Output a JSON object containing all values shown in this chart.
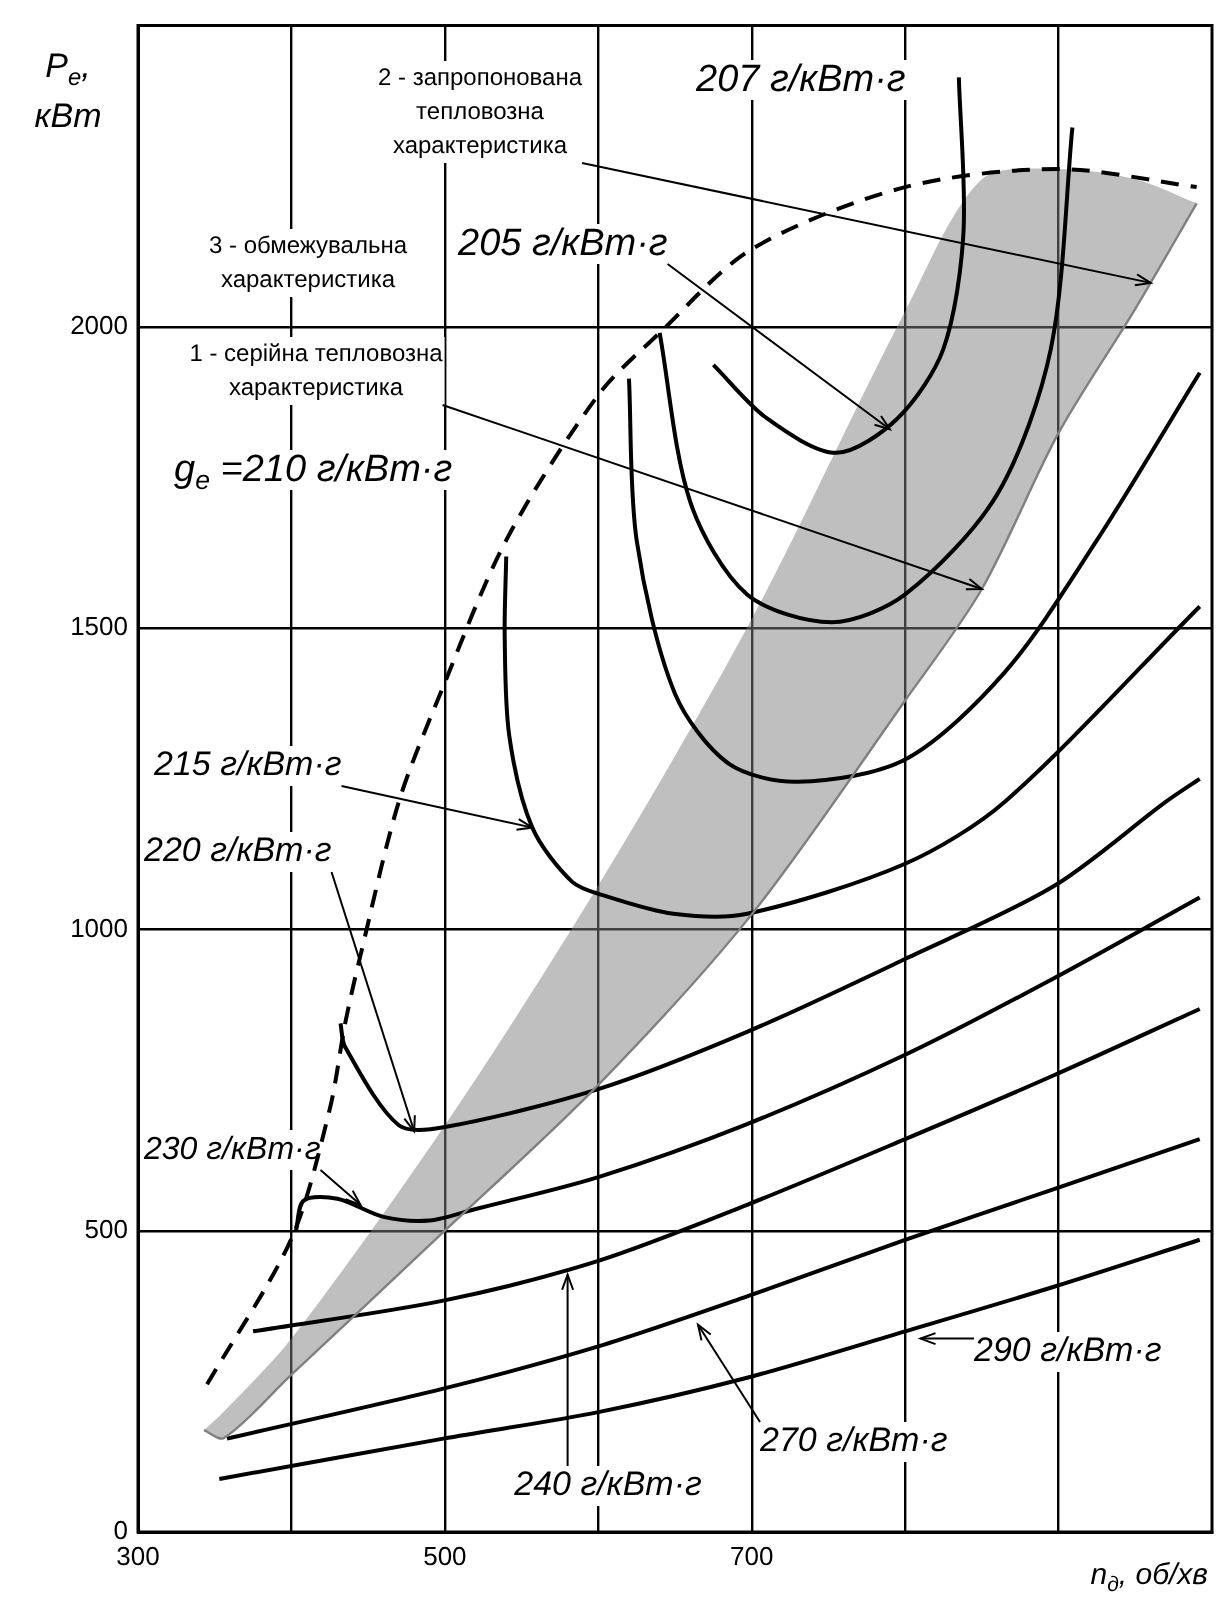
{
  "chart_data": {
    "type": "line",
    "xlabel": "n$_{д}$, об/хв",
    "ylabel": "P$_{e}$, кВт",
    "xlim": [
      300,
      1000
    ],
    "ylim": [
      0,
      2500
    ],
    "xticks": [
      300,
      {
        "value": 400,
        "label": null
      },
      500,
      {
        "value": 600,
        "label": null
      },
      700,
      {
        "value": 800,
        "label": null
      },
      {
        "value": 900,
        "label": null
      }
    ],
    "yticks": [
      0,
      500,
      1000,
      1500,
      2000
    ],
    "grid": true,
    "marker": "none",
    "annotations": [
      {
        "text": "2 - запропонована тепловозна характеристика",
        "x": 960,
        "y": 2073
      },
      "3 - обмежувальна характеристика",
      {
        "text": "1 - серійна тепловозна характеристика",
        "x": 850,
        "y": 1565
      },
      {
        "text": "205 г/кВт·г",
        "x": 790,
        "y": 1830
      },
      "207 г/кВт·г",
      "g$_{e}$ =210 г/кВт·г",
      {
        "text": "215 г/кВт·г",
        "x": 557,
        "y": 1169
      },
      {
        "text": "220 г/кВт·г",
        "x": 480,
        "y": 665
      },
      {
        "text": "230 г/кВт·г",
        "x": 445,
        "y": 543
      },
      {
        "text": "240 г/кВт·г",
        "x": 580,
        "y": 427
      },
      {
        "text": "270 г/кВт·г",
        "x": 665,
        "y": 344
      },
      {
        "text": "290 г/кВт·г",
        "x": 810,
        "y": 321
      }
    ],
    "series": [
      {
        "type": "line",
        "color": "#808080",
        "x": [
          343,
          356,
          400,
          500,
          600,
          700,
          800,
          850,
          900,
          950,
          990
        ],
        "values": [
          169,
          156,
          261,
          500,
          742,
          1025,
          1380,
          1565,
          1824,
          2030,
          2205
        ],
        "upper": [
          169,
          200,
          321,
          675,
          1073,
          1515,
          2026,
          2245,
          2262,
          2245,
          2205
        ],
        "lower": [
          169,
          156,
          261,
          500,
          742,
          1025,
          1380,
          1565,
          1824,
          2030,
          2205
        ]
      },
      {
        "type": "line",
        "color": "#000000",
        "line_style": "dashed",
        "x": [
          345,
          400,
          425,
          435,
          445,
          470,
          497,
          540,
          600,
          640,
          700,
          800,
          900,
          990
        ],
        "values": [
          245,
          487,
          702,
          844,
          957,
          1212,
          1391,
          1646,
          1887,
          1990,
          2129,
          2232,
          2262,
          2232
        ]
      },
      {
        "color": "#000000",
        "x": [
          675,
          710,
          755,
          795,
          825,
          838,
          835
        ],
        "values": [
          1937,
          1848,
          1791,
          1848,
          1964,
          2156,
          2414
        ]
      },
      {
        "color": "#000000",
        "x": [
          640,
          660,
          697,
          752,
          800,
          860,
          895,
          909
        ],
        "values": [
          1990,
          1709,
          1556,
          1510,
          1556,
          1722,
          1964,
          2331
        ]
      },
      {
        "color": "#000000",
        "x": [
          620,
          625,
          650,
          685,
          730,
          800,
          865,
          925,
          992
        ],
        "values": [
          1914,
          1646,
          1391,
          1275,
          1245,
          1282,
          1427,
          1646,
          1924
        ]
      },
      {
        "color": "#000000",
        "x": [
          540,
          539,
          542,
          557,
          583,
          604,
          649,
          697,
          800,
          865,
          992
        ],
        "values": [
          1619,
          1487,
          1321,
          1169,
          1079,
          1056,
          1026,
          1026,
          1109,
          1212,
          1536
        ]
      },
      {
        "color": "#000000",
        "x": [
          432,
          435,
          470,
          500,
          600,
          697,
          800,
          897,
          970,
          992
        ],
        "values": [
          844,
          805,
          675,
          672,
          735,
          830,
          951,
          1072,
          1212,
          1250
        ]
      },
      {
        "color": "#000000",
        "x": [
          403,
          408,
          430,
          460,
          490,
          520,
          600,
          697,
          800,
          897,
          992
        ],
        "values": [
          500,
          550,
          553,
          523,
          517,
          536,
          589,
          677,
          792,
          919,
          1053
        ]
      },
      {
        "color": "#000000",
        "x": [
          375,
          499,
          600,
          697,
          800,
          897,
          992
        ],
        "values": [
          333,
          384,
          450,
          543,
          652,
          758,
          868
        ]
      },
      {
        "color": "#000000",
        "x": [
          358,
          499,
          600,
          697,
          800,
          897,
          992
        ],
        "values": [
          155,
          238,
          308,
          391,
          485,
          569,
          652
        ]
      },
      {
        "color": "#000000",
        "x": [
          353,
          499,
          600,
          697,
          800,
          897,
          992
        ],
        "values": [
          88,
          155,
          199,
          256,
          333,
          407,
          485
        ]
      }
    ]
  }
}
